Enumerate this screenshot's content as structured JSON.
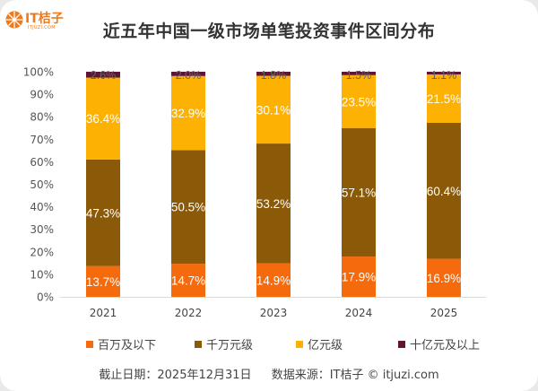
{
  "logo": {
    "name": "IT桔子",
    "sub": "ITJUZI.COM",
    "icon": "orange-slice-icon"
  },
  "chart_data": {
    "type": "bar",
    "stacked": true,
    "title": "近五年中国一级市场单笔投资事件区间分布",
    "xlabel": "",
    "ylabel": "",
    "ylim": [
      0,
      100
    ],
    "yticks": [
      "0%",
      "10%",
      "20%",
      "30%",
      "40%",
      "50%",
      "60%",
      "70%",
      "80%",
      "90%",
      "100%"
    ],
    "grid": false,
    "legend_position": "bottom",
    "categories": [
      "2021",
      "2022",
      "2023",
      "2024",
      "2025"
    ],
    "series": [
      {
        "name": "百万及以下",
        "color": "#f56a0c",
        "values": [
          13.7,
          14.7,
          14.9,
          17.9,
          16.9
        ],
        "labels": [
          "13.7%",
          "14.7%",
          "14.9%",
          "17.9%",
          "16.9%"
        ]
      },
      {
        "name": "千万元级",
        "color": "#8b5a08",
        "values": [
          47.3,
          50.5,
          53.2,
          57.1,
          60.4
        ],
        "labels": [
          "47.3%",
          "50.5%",
          "53.2%",
          "57.1%",
          "60.4%"
        ]
      },
      {
        "name": "亿元级",
        "color": "#fdb102",
        "values": [
          36.4,
          32.9,
          30.1,
          23.5,
          21.5
        ],
        "labels": [
          "36.4%",
          "32.9%",
          "30.1%",
          "23.5%",
          "21.5%"
        ]
      },
      {
        "name": "十亿元及以上",
        "color": "#5e1538",
        "values": [
          2.6,
          2.0,
          1.8,
          1.5,
          1.1
        ],
        "labels": [
          "2.6%",
          "2.0%",
          "1.8%",
          "1.5%",
          "1.1%"
        ]
      }
    ]
  },
  "footer": {
    "date": "截止日期：2025年12月31日",
    "source": "数据来源：IT桔子 © itjuzi.com"
  }
}
